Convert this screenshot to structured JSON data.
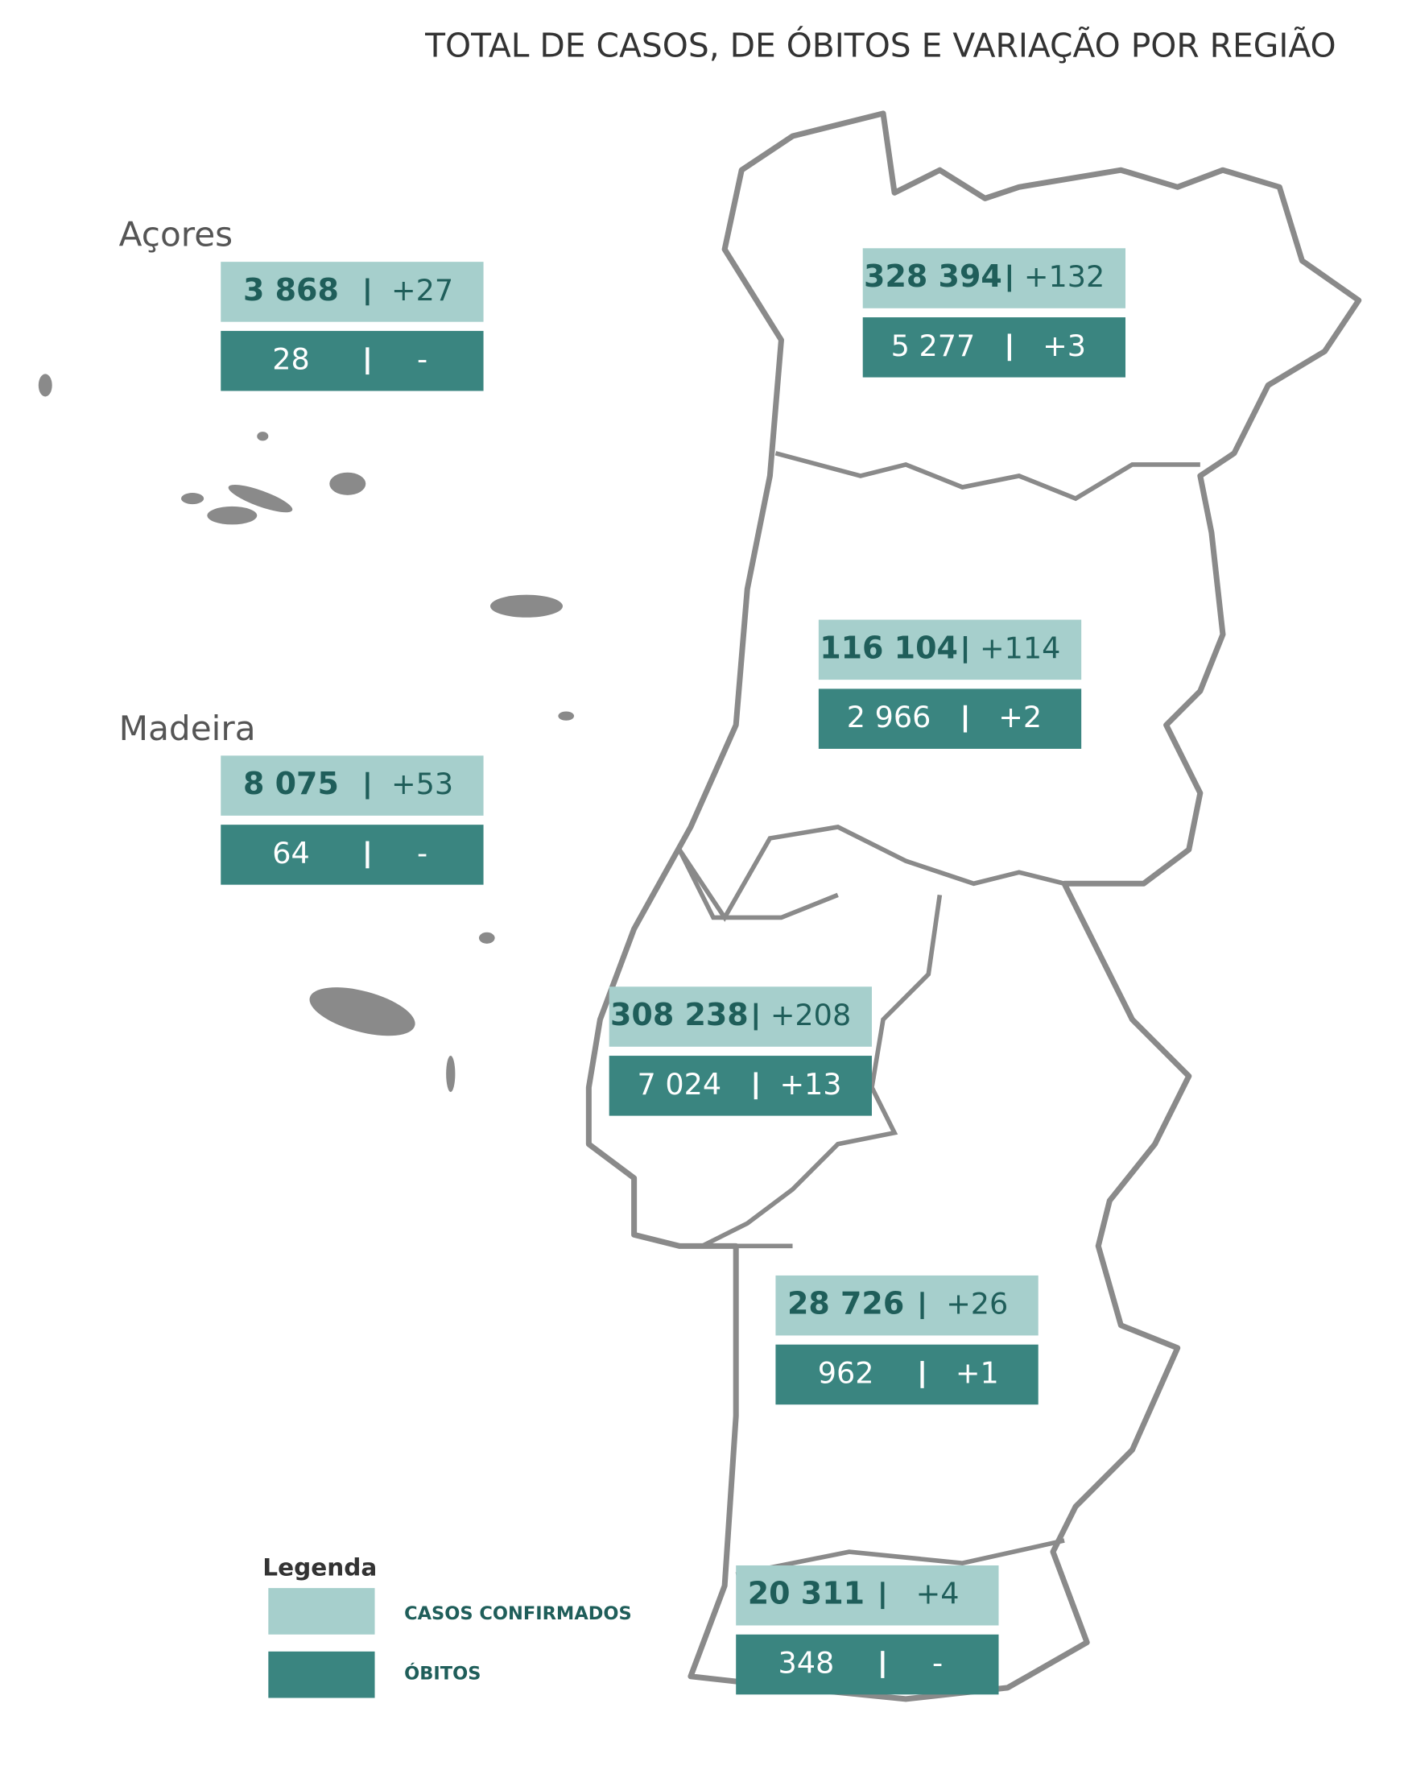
{
  "title": "TOTAL DE CASOS, DE ÓBITOS E VARIAÇÃO POR REGIÃO",
  "regions": [
    {
      "label": "Açores",
      "cases": "3 868",
      "cases_change": "+27",
      "deaths": "28",
      "deaths_change": "-"
    },
    {
      "cases": "328 394",
      "cases_change": "+132",
      "deaths": "5 277",
      "deaths_change": "+3"
    },
    {
      "cases": "116 104",
      "cases_change": "+114",
      "deaths": "2 966",
      "deaths_change": "+2"
    },
    {
      "label": "Madeira",
      "cases": "8 075",
      "cases_change": "+53",
      "deaths": "64",
      "deaths_change": "-"
    },
    {
      "cases": "308 238",
      "cases_change": "+208",
      "deaths": "7 024",
      "deaths_change": "+13"
    },
    {
      "cases": "28 726",
      "cases_change": "+26",
      "deaths": "962",
      "deaths_change": "+1"
    },
    {
      "cases": "20 311",
      "cases_change": "+4",
      "deaths": "348",
      "deaths_change": "-"
    }
  ],
  "legend": {
    "title": "Legenda",
    "items": [
      "CASOS CONFIRMADOS",
      "ÓBITOS"
    ]
  }
}
